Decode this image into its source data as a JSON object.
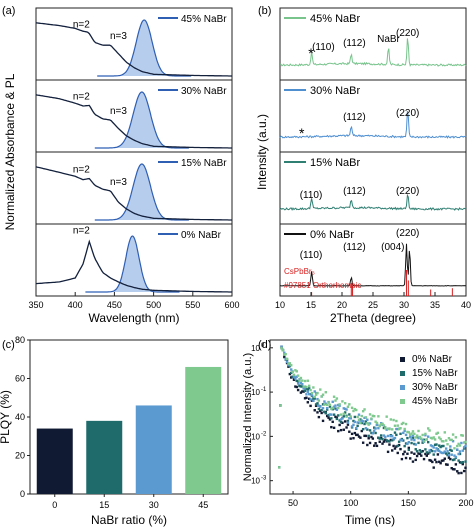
{
  "panels": {
    "a": {
      "letter": "(a)",
      "ylabel": "Normalized Absorbance & PL",
      "xlabel": "Wavelength (nm)",
      "xticks": [
        "350",
        "400",
        "450",
        "500",
        "550",
        "600"
      ],
      "xlim": [
        350,
        600
      ],
      "subpanels": [
        {
          "legend": "45% NaBr",
          "peaks": [
            "n=2",
            "n=3"
          ]
        },
        {
          "legend": "30% NaBr",
          "peaks": [
            "n=2",
            "n=3"
          ]
        },
        {
          "legend": "15% NaBr",
          "peaks": [
            "n=2",
            "n=3"
          ]
        },
        {
          "legend": "0% NaBr",
          "peaks": [
            "n=2"
          ]
        }
      ]
    },
    "b": {
      "letter": "(b)",
      "ylabel": "Intensity (a.u.)",
      "xlabel": "2Theta (degree)",
      "xticks": [
        "10",
        "15",
        "20",
        "25",
        "30",
        "35",
        "40"
      ],
      "xlim": [
        10,
        40
      ],
      "subpanels": [
        {
          "legend": "45% NaBr",
          "labels": [
            "*",
            "(110)",
            "(112)",
            "NaBr",
            "(220)"
          ]
        },
        {
          "legend": "30% NaBr",
          "labels": [
            "(112)",
            "(220)",
            "*"
          ]
        },
        {
          "legend": "15% NaBr",
          "labels": [
            "(110)",
            "(112)",
            "(220)"
          ]
        },
        {
          "legend": "0% NaBr",
          "labels": [
            "(110)",
            "(112)",
            "(004)",
            "(220)"
          ],
          "reference": [
            "CsPbBr₃",
            "#97851 Orthorhombic"
          ]
        }
      ]
    },
    "c": {
      "letter": "(c)",
      "ylabel": "PLQY (%)",
      "xlabel": "NaBr ratio (%)",
      "yticks": [
        "0",
        "20",
        "40",
        "60",
        "80"
      ]
    },
    "d": {
      "letter": "(d)",
      "ylabel": "Normalized Intensity (a.u.)",
      "xlabel": "Time (ns)",
      "xticks": [
        "50",
        "100",
        "150",
        "200"
      ],
      "yticks": [
        "10",
        "10",
        "10",
        "10"
      ],
      "yexps": [
        "0",
        "-1",
        "-2",
        "-3"
      ]
    }
  },
  "colors": {
    "nabr0": "#111a33",
    "nabr15": "#1f6b6b",
    "nabr30": "#5a9ad0",
    "nabr45": "#7fc98f",
    "pl_fill": "#a9c4ea",
    "pl_line": "#2f5fb3",
    "ref": "#d81f1f",
    "xrd45": "#78c48c",
    "xrd30": "#4f8fd0",
    "xrd15": "#2f7f72",
    "xrd0": "#111111"
  },
  "chart_data": [
    {
      "type": "line",
      "panel": "a",
      "xlabel": "Wavelength (nm)",
      "ylabel": "Normalized Absorbance & PL",
      "xlim": [
        350,
        600
      ],
      "series": [
        {
          "name": "45% NaBr",
          "absorbance": {
            "x": [
              350,
              380,
              400,
              410,
              417,
              425,
              435,
              445,
              455,
              465,
              475,
              485,
              500,
              550,
              600
            ],
            "y": [
              0.95,
              0.9,
              0.85,
              0.8,
              0.78,
              0.6,
              0.55,
              0.55,
              0.4,
              0.25,
              0.15,
              0.08,
              0.03,
              0.01,
              0.0
            ]
          },
          "pl_peak": 488,
          "pl_fwhm": 24
        },
        {
          "name": "30% NaBr",
          "absorbance": {
            "x": [
              350,
              380,
              400,
              410,
              418,
              425,
              435,
              445,
              455,
              465,
              475,
              485,
              500,
              550,
              600
            ],
            "y": [
              0.95,
              0.88,
              0.8,
              0.75,
              0.76,
              0.6,
              0.52,
              0.5,
              0.35,
              0.22,
              0.14,
              0.08,
              0.03,
              0.01,
              0.0
            ]
          },
          "pl_peak": 485,
          "pl_fwhm": 26
        },
        {
          "name": "15% NaBr",
          "absorbance": {
            "x": [
              350,
              380,
              400,
              410,
              418,
              425,
              435,
              445,
              455,
              465,
              475,
              485,
              500,
              550,
              600
            ],
            "y": [
              0.95,
              0.85,
              0.78,
              0.72,
              0.74,
              0.62,
              0.55,
              0.52,
              0.32,
              0.2,
              0.12,
              0.07,
              0.03,
              0.01,
              0.0
            ]
          },
          "pl_peak": 485,
          "pl_fwhm": 26
        },
        {
          "name": "0% NaBr",
          "absorbance": {
            "x": [
              350,
              380,
              400,
              410,
              418,
              425,
              435,
              445,
              455,
              465,
              475,
              485,
              500,
              550,
              600
            ],
            "y": [
              0.15,
              0.18,
              0.25,
              0.5,
              0.9,
              0.6,
              0.35,
              0.25,
              0.18,
              0.12,
              0.08,
              0.05,
              0.03,
              0.01,
              0.0
            ]
          },
          "pl_peak": 473,
          "pl_fwhm": 20
        }
      ]
    },
    {
      "type": "line",
      "panel": "b",
      "xlabel": "2Theta (degree)",
      "ylabel": "Intensity (a.u.)",
      "xlim": [
        10,
        40
      ],
      "series": [
        {
          "name": "45% NaBr",
          "peaks": [
            [
              15.1,
              0.45
            ],
            [
              21.5,
              0.35
            ],
            [
              27.5,
              0.6
            ],
            [
              30.6,
              1.0
            ]
          ]
        },
        {
          "name": "30% NaBr",
          "peaks": [
            [
              21.5,
              0.35
            ],
            [
              30.6,
              1.0
            ]
          ]
        },
        {
          "name": "15% NaBr",
          "peaks": [
            [
              15.1,
              0.4
            ],
            [
              21.5,
              0.3
            ],
            [
              30.6,
              0.55
            ]
          ]
        },
        {
          "name": "0% NaBr",
          "peaks": [
            [
              15.1,
              0.35
            ],
            [
              21.5,
              0.2
            ],
            [
              30.4,
              1.0
            ],
            [
              30.9,
              0.9
            ]
          ]
        }
      ],
      "reference": {
        "name": "#97851 Orthorhombic",
        "x": [
          15.1,
          21.5,
          21.7,
          30.4,
          30.7,
          34.3,
          37.8
        ],
        "y": [
          0.15,
          0.5,
          0.4,
          1.0,
          0.6,
          0.25,
          0.3
        ]
      }
    },
    {
      "type": "bar",
      "panel": "c",
      "categories": [
        "0",
        "15",
        "30",
        "45"
      ],
      "values": [
        34,
        38,
        46,
        66
      ],
      "xlabel": "NaBr ratio (%)",
      "ylabel": "PLQY (%)",
      "ylim": [
        0,
        80
      ]
    },
    {
      "type": "scatter",
      "panel": "d",
      "xlabel": "Time (ns)",
      "ylabel": "Normalized Intensity (a.u.)",
      "xlim": [
        30,
        200
      ],
      "ylim": [
        0.0005,
        1.5
      ],
      "yscale": "log",
      "legend": "top-right",
      "series": [
        {
          "name": "0% NaBr",
          "decay": [
            [
              40,
              1.0
            ],
            [
              50,
              0.18
            ],
            [
              70,
              0.04
            ],
            [
              100,
              0.012
            ],
            [
              150,
              0.004
            ],
            [
              200,
              0.002
            ]
          ]
        },
        {
          "name": "15% NaBr",
          "decay": [
            [
              40,
              1.0
            ],
            [
              50,
              0.22
            ],
            [
              70,
              0.06
            ],
            [
              100,
              0.02
            ],
            [
              150,
              0.007
            ],
            [
              200,
              0.0035
            ]
          ]
        },
        {
          "name": "30% NaBr",
          "decay": [
            [
              40,
              1.0
            ],
            [
              50,
              0.25
            ],
            [
              70,
              0.07
            ],
            [
              100,
              0.025
            ],
            [
              150,
              0.009
            ],
            [
              200,
              0.0045
            ]
          ]
        },
        {
          "name": "45% NaBr",
          "decay": [
            [
              40,
              1.0
            ],
            [
              50,
              0.3
            ],
            [
              70,
              0.09
            ],
            [
              100,
              0.035
            ],
            [
              150,
              0.013
            ],
            [
              200,
              0.007
            ]
          ]
        }
      ]
    }
  ]
}
